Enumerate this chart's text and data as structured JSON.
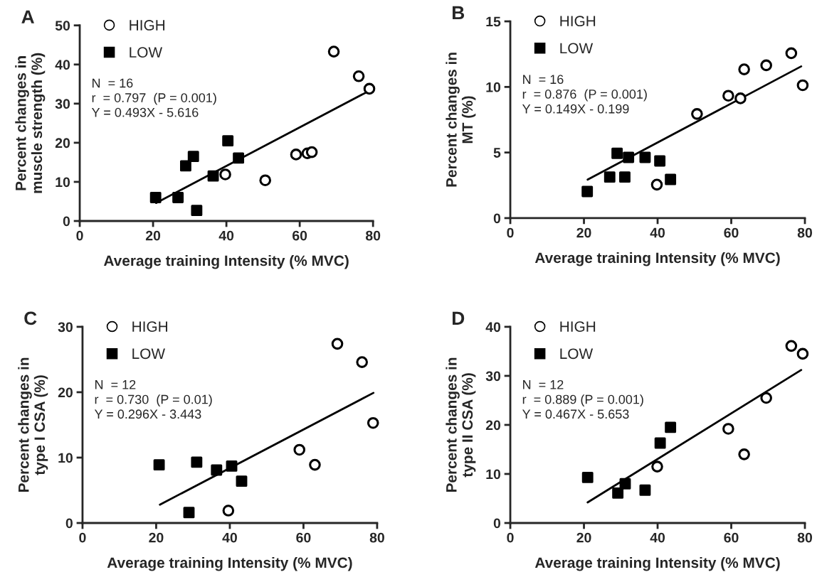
{
  "chart_data": [
    {
      "type": "scatter",
      "xlabel": "Average training Intensity (% MVC)",
      "ylabel": "Percent changes in\nmuscle strength (%)",
      "xlim": [
        0,
        80
      ],
      "xticks": [
        0,
        20,
        40,
        60,
        80
      ],
      "ylim": [
        0,
        50
      ],
      "yticks": [
        0,
        10,
        20,
        30,
        40,
        50
      ],
      "legend": "top left",
      "annotations": [
        "A",
        "N  = 16",
        "r  = 0.797  (P = 0.001)",
        "Y = 0.493X - 5.616"
      ],
      "series": [
        {
          "name": "HIGH",
          "color": "#000000",
          "marker": "circle",
          "x": [
            39.7,
            50.6,
            59.0,
            62.1,
            63.3,
            69.3,
            76.1,
            79.0
          ],
          "values": [
            11.9,
            10.4,
            17.0,
            17.3,
            17.6,
            43.3,
            37.0,
            33.8
          ]
        },
        {
          "name": "LOW",
          "color": "#000000",
          "marker": "square",
          "x": [
            20.7,
            26.8,
            28.9,
            31.0,
            31.9,
            36.4,
            40.4,
            43.3
          ],
          "values": [
            6.0,
            6.0,
            14.1,
            16.5,
            2.7,
            11.5,
            20.5,
            16.1
          ]
        },
        {
          "type": "line",
          "color": "#000000",
          "x": [
            20.8,
            79.0
          ],
          "values": [
            4.6,
            33.3
          ]
        }
      ]
    },
    {
      "type": "scatter",
      "xlabel": "Average training Intensity (% MVC)",
      "ylabel": "Percent changes in\nMT (%)",
      "xlim": [
        0,
        80
      ],
      "xticks": [
        0,
        20,
        40,
        60,
        80
      ],
      "ylim": [
        0,
        15
      ],
      "yticks": [
        0,
        5,
        10,
        15
      ],
      "legend": "top left",
      "annotations": [
        "B",
        "N  = 16",
        "r  = 0.876  (P = 0.001)",
        "Y = 0.149X - 0.199"
      ],
      "series": [
        {
          "name": "HIGH",
          "color": "#000000",
          "marker": "circle",
          "x": [
            39.8,
            50.7,
            59.2,
            62.5,
            63.5,
            69.5,
            76.3,
            79.4
          ],
          "values": [
            2.55,
            7.94,
            9.33,
            9.13,
            11.34,
            11.65,
            12.57,
            10.13
          ]
        },
        {
          "name": "LOW",
          "color": "#000000",
          "marker": "square",
          "x": [
            20.9,
            27.0,
            29.0,
            31.1,
            32.1,
            36.6,
            40.6,
            43.5
          ],
          "values": [
            2.03,
            3.13,
            4.94,
            3.13,
            4.63,
            4.63,
            4.36,
            2.95
          ]
        },
        {
          "type": "line",
          "color": "#000000",
          "x": [
            21.0,
            79.0
          ],
          "values": [
            2.93,
            11.57
          ]
        }
      ]
    },
    {
      "type": "scatter",
      "xlabel": "Average training Intensity (% MVC)",
      "ylabel": "Percent changes in\ntype I CSA (%)",
      "xlim": [
        0,
        80
      ],
      "xticks": [
        0,
        20,
        40,
        60,
        80
      ],
      "ylim": [
        0,
        30
      ],
      "yticks": [
        0,
        10,
        20,
        30
      ],
      "legend": "top left",
      "annotations": [
        "C",
        "N  = 12",
        "r  = 0.730  (P = 0.01)",
        "Y = 0.296X - 3.443"
      ],
      "series": [
        {
          "name": "HIGH",
          "color": "#000000",
          "marker": "circle",
          "x": [
            39.6,
            58.9,
            63.1,
            69.2,
            75.9,
            78.9
          ],
          "values": [
            1.9,
            11.2,
            8.9,
            27.4,
            24.6,
            15.3
          ]
        },
        {
          "name": "LOW",
          "color": "#000000",
          "marker": "square",
          "x": [
            20.8,
            28.9,
            31.0,
            36.4,
            40.5,
            43.2
          ],
          "values": [
            8.9,
            1.6,
            9.3,
            8.1,
            8.7,
            6.4
          ]
        },
        {
          "type": "line",
          "color": "#000000",
          "x": [
            21.0,
            79.0
          ],
          "values": [
            2.8,
            19.9
          ]
        }
      ]
    },
    {
      "type": "scatter",
      "xlabel": "Average training Intensity (% MVC)",
      "ylabel": "Percent changes in\ntype II CSA (%)",
      "xlim": [
        0,
        80
      ],
      "xticks": [
        0,
        20,
        40,
        60,
        80
      ],
      "ylim": [
        0,
        40
      ],
      "yticks": [
        0,
        10,
        20,
        30,
        40
      ],
      "legend": "top left",
      "annotations": [
        "D",
        "N  = 12",
        "r  = 0.889 (P = 0.001)",
        "Y = 0.467X - 5.653"
      ],
      "series": [
        {
          "name": "HIGH",
          "color": "#000000",
          "marker": "circle",
          "x": [
            39.9,
            59.2,
            63.5,
            69.5,
            76.3,
            79.4
          ],
          "values": [
            11.5,
            19.2,
            14.0,
            25.5,
            36.1,
            34.5
          ]
        },
        {
          "name": "LOW",
          "color": "#000000",
          "marker": "square",
          "x": [
            21.0,
            29.2,
            31.2,
            36.6,
            40.7,
            43.5
          ],
          "values": [
            9.3,
            6.1,
            8.0,
            6.7,
            16.3,
            19.5
          ]
        },
        {
          "type": "line",
          "color": "#000000",
          "x": [
            21.0,
            79.0
          ],
          "values": [
            4.2,
            31.2
          ]
        }
      ]
    }
  ]
}
